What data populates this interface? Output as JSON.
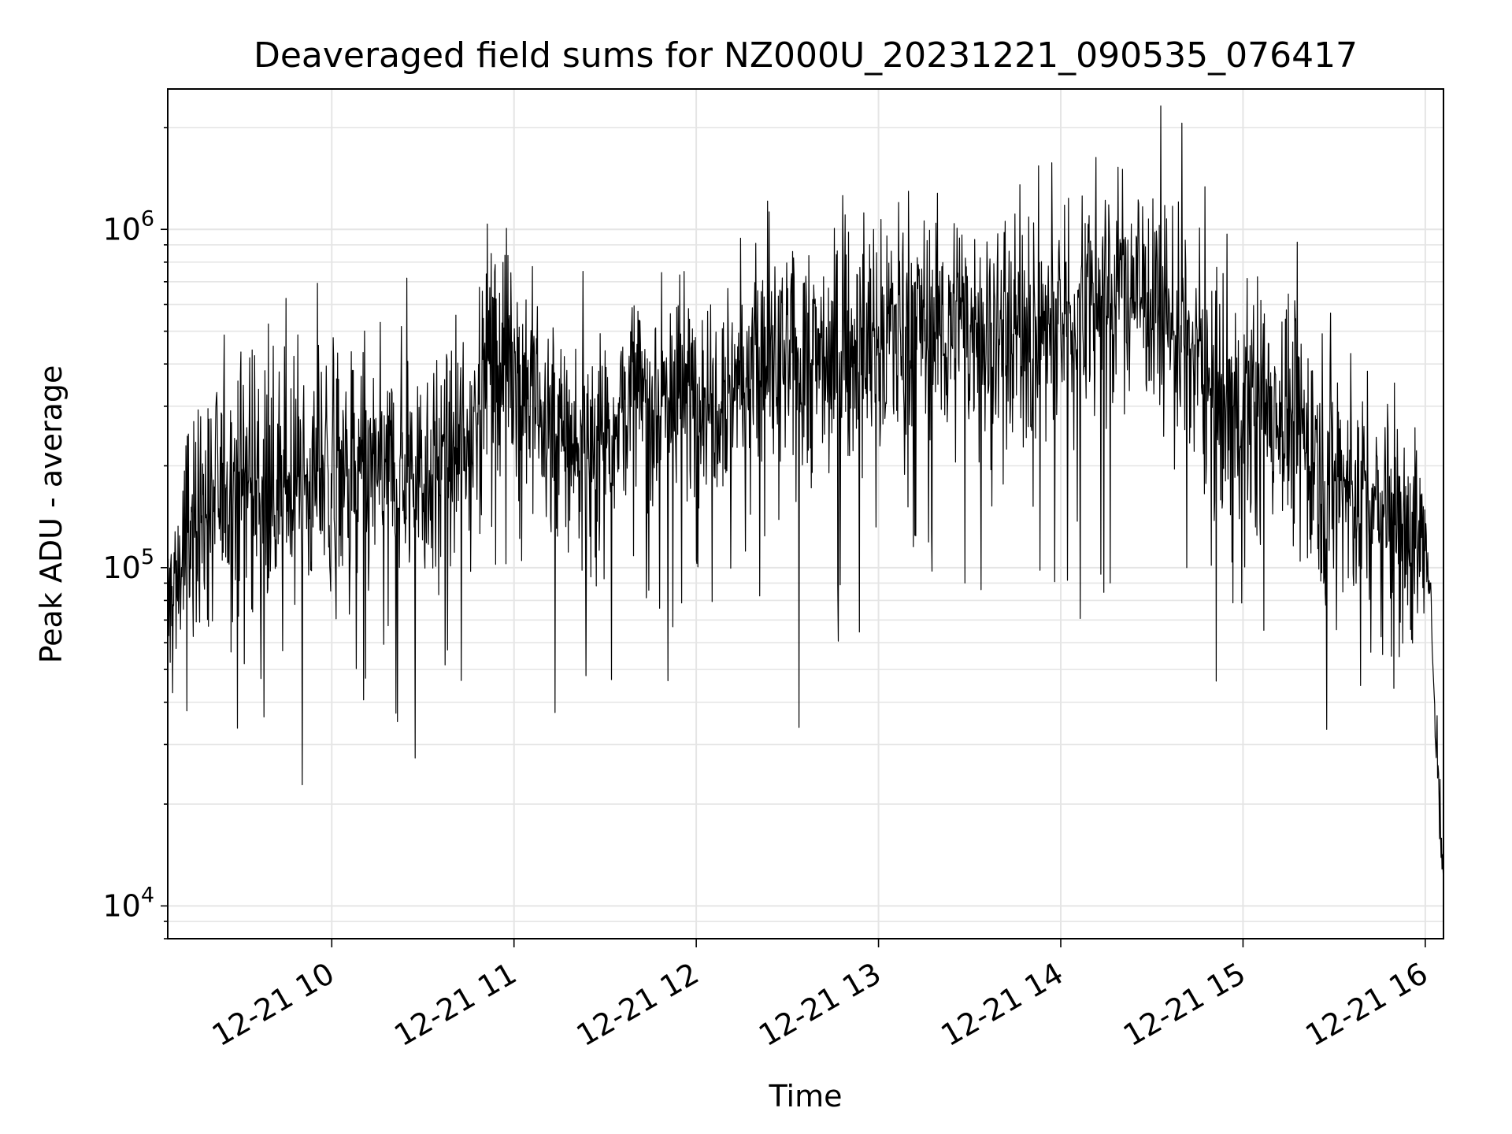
{
  "chart_data": {
    "type": "line",
    "title": "Deaveraged field sums for NZ000U_20231221_090535_076417",
    "xlabel": "Time",
    "ylabel": "Peak ADU - average",
    "yscale": "log",
    "ylim": [
      8000,
      2600000
    ],
    "xlim_hours": [
      9.1,
      16.1
    ],
    "grid": true,
    "line_color": "#000000",
    "grid_color": "#e5e5e5",
    "x_ticks": [
      {
        "hour": 10,
        "label": "12-21 10"
      },
      {
        "hour": 11,
        "label": "12-21 11"
      },
      {
        "hour": 12,
        "label": "12-21 12"
      },
      {
        "hour": 13,
        "label": "12-21 13"
      },
      {
        "hour": 14,
        "label": "12-21 14"
      },
      {
        "hour": 15,
        "label": "12-21 15"
      },
      {
        "hour": 16,
        "label": "12-21 16"
      }
    ],
    "y_ticks": [
      {
        "value": 10000,
        "base": "10",
        "exp": "4"
      },
      {
        "value": 100000,
        "base": "10",
        "exp": "5"
      },
      {
        "value": 1000000,
        "base": "10",
        "exp": "6"
      }
    ],
    "series": [
      {
        "envelope": {
          "hour": [
            9.1,
            9.2,
            9.35,
            9.5,
            9.7,
            10.0,
            10.3,
            10.6,
            10.75,
            10.85,
            11.0,
            11.2,
            11.4,
            11.6,
            11.8,
            12.0,
            12.3,
            12.6,
            12.9,
            13.2,
            13.4,
            13.6,
            13.8,
            14.0,
            14.2,
            14.4,
            14.6,
            14.75,
            14.9,
            15.2,
            15.4,
            15.6,
            15.8,
            15.9,
            16.0,
            16.04,
            16.07,
            16.1
          ],
          "center": [
            70000,
            120000,
            160000,
            190000,
            170000,
            190000,
            190000,
            200000,
            220000,
            450000,
            400000,
            250000,
            220000,
            300000,
            320000,
            330000,
            380000,
            400000,
            450000,
            550000,
            500000,
            500000,
            500000,
            500000,
            650000,
            700000,
            550000,
            400000,
            300000,
            300000,
            220000,
            170000,
            140000,
            130000,
            120000,
            60000,
            25000,
            12000
          ]
        }
      }
    ]
  }
}
